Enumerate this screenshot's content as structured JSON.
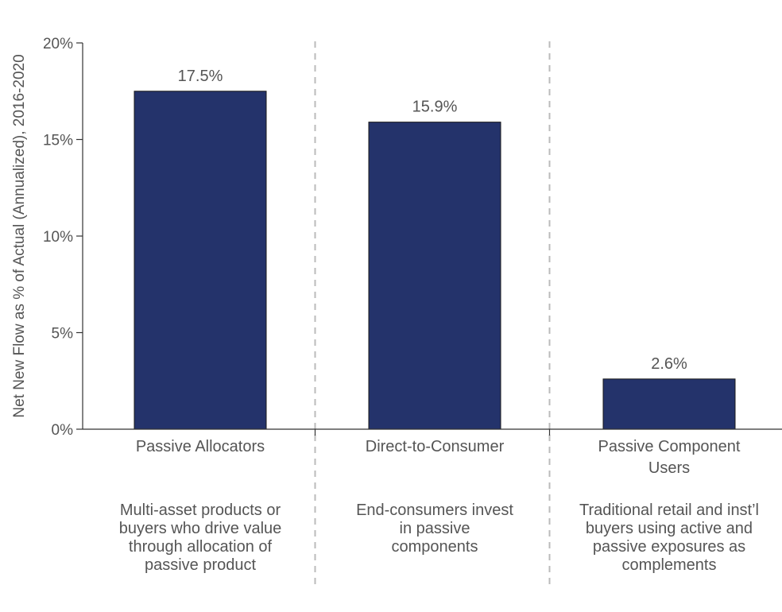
{
  "chart_data": {
    "type": "bar",
    "categories": [
      "Passive Allocators",
      "Direct-to-Consumer",
      "Passive Component Users"
    ],
    "descriptions": [
      "Multi-asset products or buyers who drive value through allocation of passive product",
      "End-consumers invest in passive components",
      "Traditional retail and inst’l buyers using active and passive exposures as complements"
    ],
    "values": [
      17.5,
      15.9,
      2.6
    ],
    "data_labels": [
      "17.5%",
      "15.9%",
      "2.6%"
    ],
    "ylabel": "Net New Flow as % of Actual (Annualized), 2016-2020",
    "ylim": [
      0,
      20
    ],
    "yticks": [
      0,
      5,
      10,
      15,
      20
    ],
    "ytick_labels": [
      "0%",
      "5%",
      "10%",
      "15%",
      "20%"
    ],
    "grid": false,
    "legend": "none",
    "bar_color": "#24336b",
    "separator_style": "dashed"
  }
}
